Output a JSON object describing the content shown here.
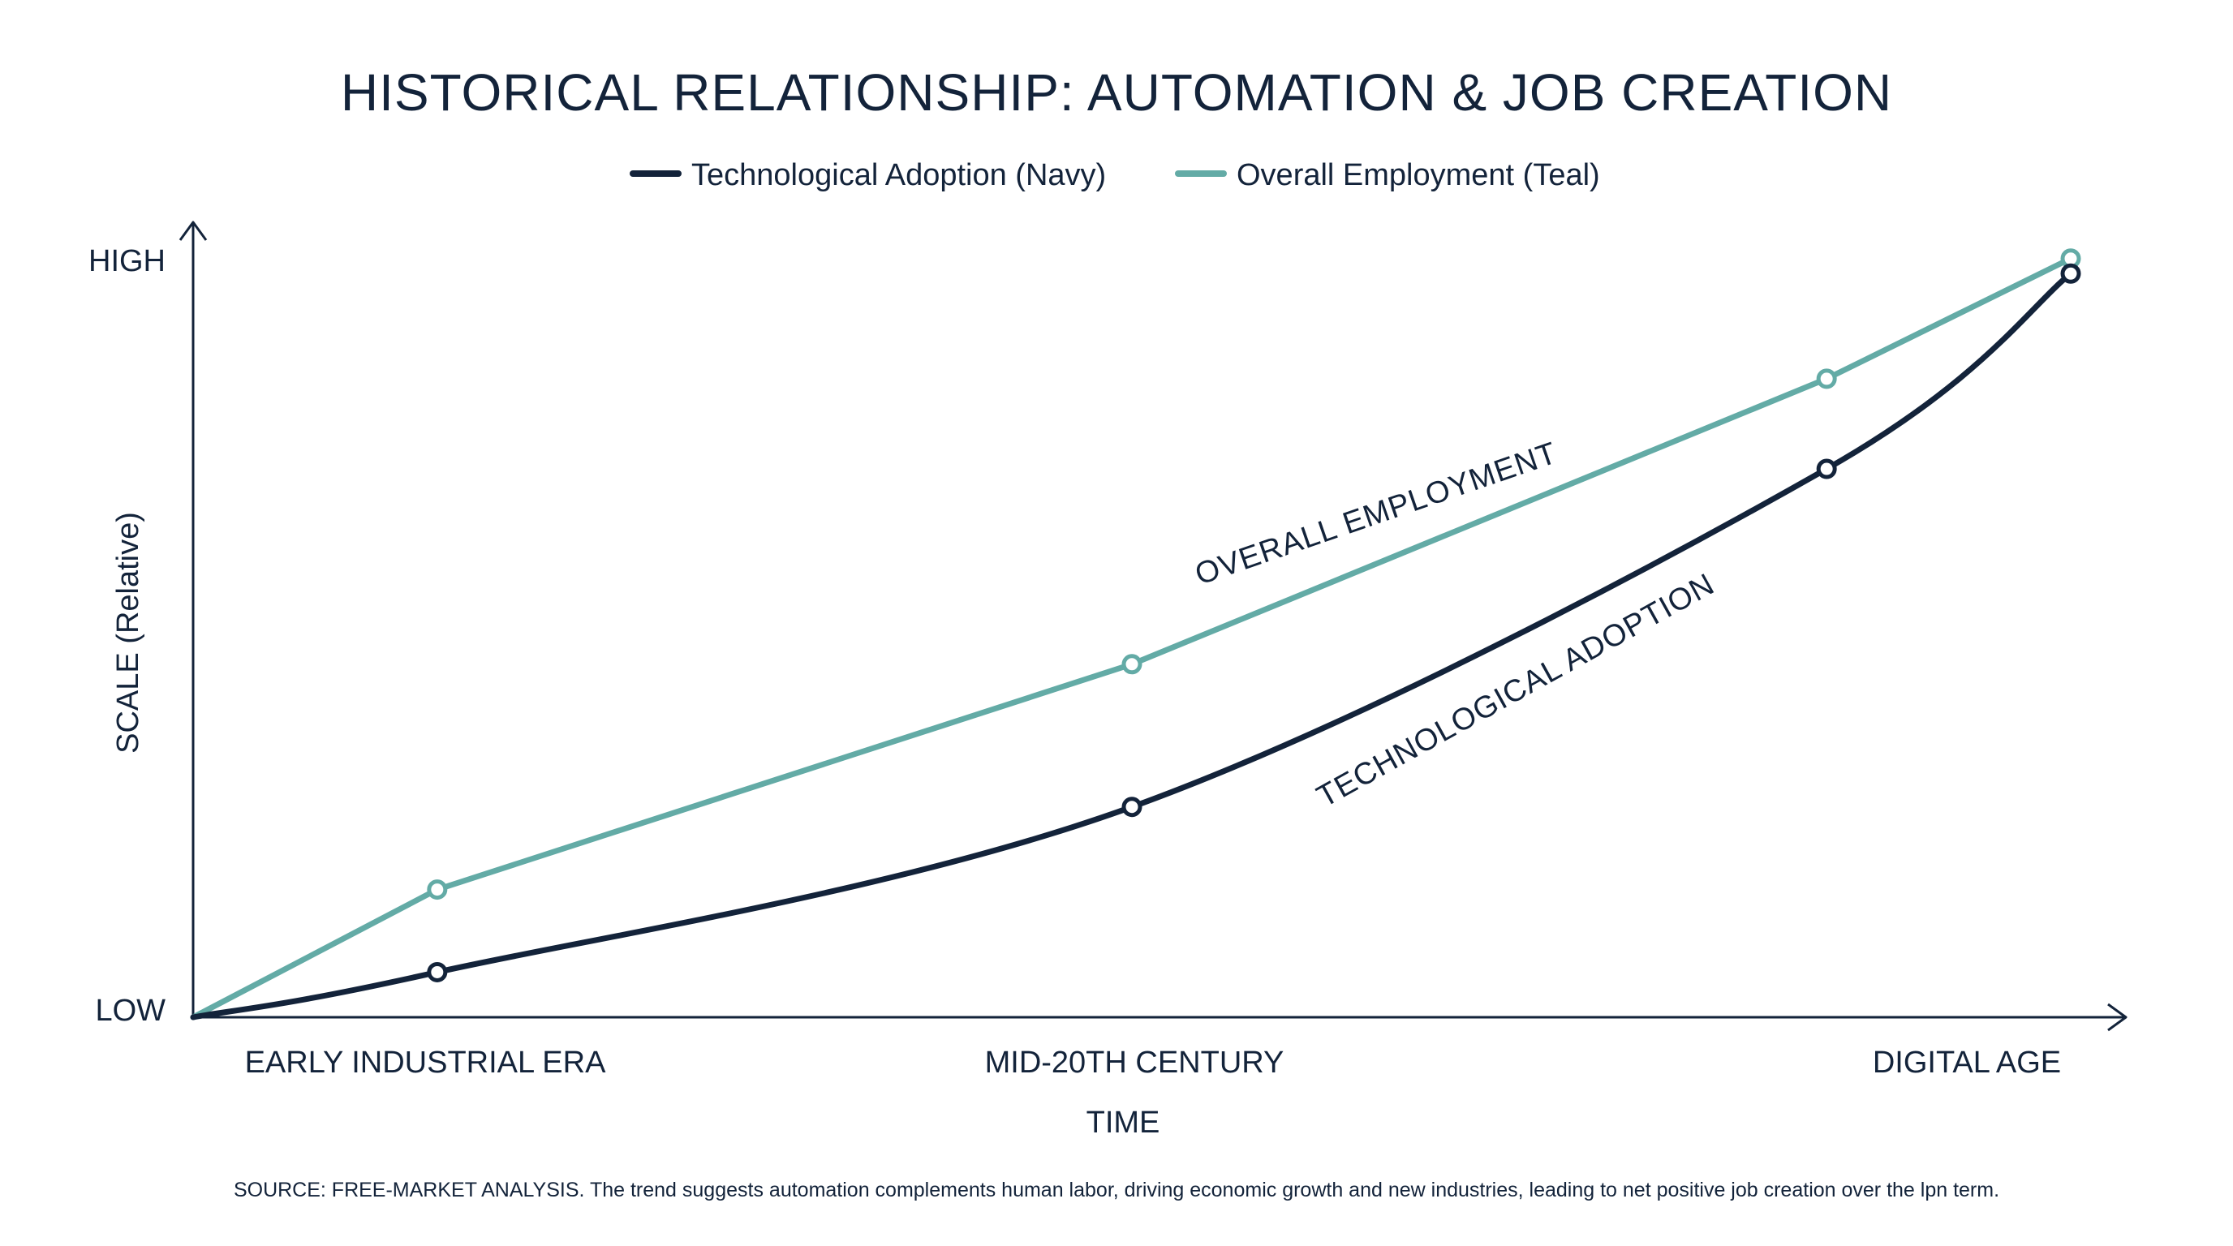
{
  "chart_data": {
    "type": "line",
    "title": "HISTORICAL RELATIONSHIP: AUTOMATION & JOB CREATION",
    "xlabel": "TIME",
    "ylabel": "SCALE (Relative)",
    "x_ticks": [
      "EARLY INDUSTRIAL ERA",
      "MID-20TH CENTURY",
      "DIGITAL AGE"
    ],
    "y_ticks": [
      "LOW",
      "HIGH"
    ],
    "x": [
      0,
      0.13,
      0.5,
      0.87,
      1.0
    ],
    "ylim": [
      0,
      1
    ],
    "legend_position": "top-center",
    "grid": false,
    "series": [
      {
        "name": "Technological Adoption (Navy)",
        "color": "#13233a",
        "values": [
          0,
          0.06,
          0.28,
          0.73,
          0.99
        ],
        "annotation": "TECHNOLOGICAL ADOPTION"
      },
      {
        "name": "Overall Employment (Teal)",
        "color": "#63aba6",
        "values": [
          0,
          0.17,
          0.47,
          0.85,
          1.01
        ],
        "annotation": "OVERALL EMPLOYMENT"
      }
    ],
    "source": "SOURCE: FREE-MARKET ANALYSIS. The trend suggests automation complements human labor, driving economic growth and new industries, leading to net positive job creation over the lpn term."
  }
}
